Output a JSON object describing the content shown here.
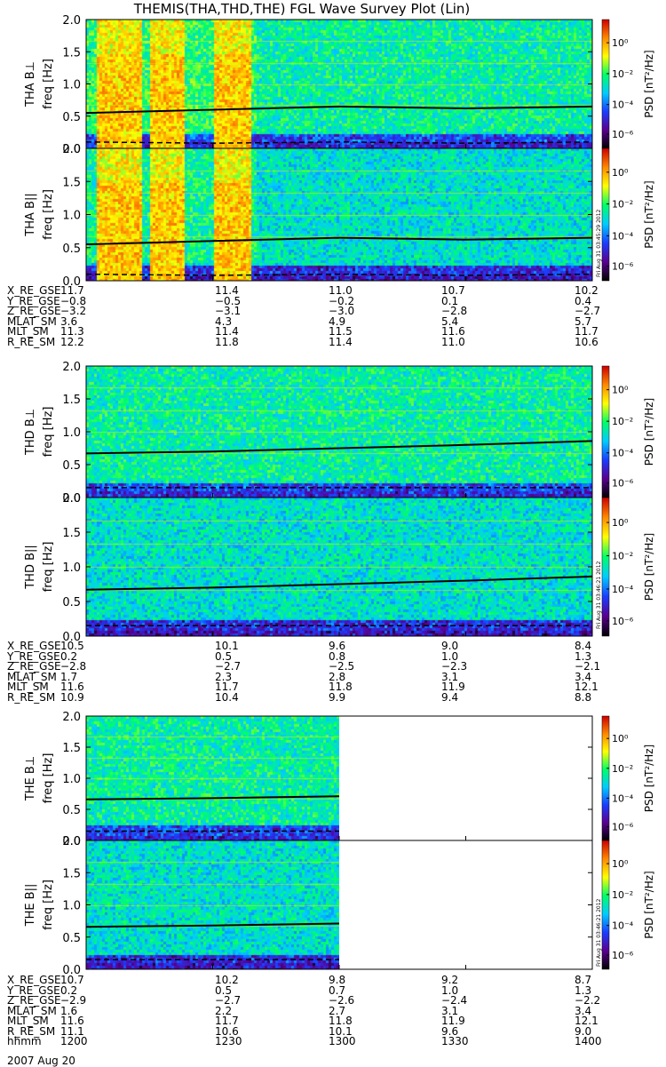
{
  "title": "THEMIS(THA,THD,THE) FGL Wave Survey Plot (Lin)",
  "date_label": "2007 Aug 20",
  "colorbar_label": "PSD [nT²/Hz]",
  "colorbar_ticks": [
    "10⁰",
    "10⁻²",
    "10⁻⁴",
    "10⁻⁶"
  ],
  "panel_ylabels": [
    "THA B⊥",
    "THA B||",
    "THD B⊥",
    "THD B||",
    "THE B⊥",
    "THE B||"
  ],
  "freq_label": "freq [Hz]",
  "stamps": [
    "Fri Aug 31 03:45:29 2012",
    "Fri Aug 31 03:46:21 2012",
    "Fri Aug 31 03:46:21 2012"
  ],
  "ephemeris_blocks": [
    {
      "rows": [
        {
          "label": "X_RE_GSE",
          "values": [
            "11.7",
            "11.4",
            "11.0",
            "10.7",
            "10.2"
          ]
        },
        {
          "label": "Y_RE_GSE",
          "values": [
            "−0.8",
            "−0.5",
            "−0.2",
            "0.1",
            "0.4"
          ]
        },
        {
          "label": "Z_RE_GSE",
          "values": [
            "−3.2",
            "−3.1",
            "−3.0",
            "−2.8",
            "−2.7"
          ]
        },
        {
          "label": "MLAT_SM",
          "values": [
            "3.6",
            "4.3",
            "4.9",
            "5.4",
            "5.7"
          ]
        },
        {
          "label": "MLT_SM",
          "values": [
            "11.3",
            "11.4",
            "11.5",
            "11.6",
            "11.7"
          ]
        },
        {
          "label": "R_RE_SM",
          "values": [
            "12.2",
            "11.8",
            "11.4",
            "11.0",
            "10.6"
          ]
        }
      ]
    },
    {
      "rows": [
        {
          "label": "X_RE_GSE",
          "values": [
            "10.5",
            "10.1",
            "9.6",
            "9.0",
            "8.4"
          ]
        },
        {
          "label": "Y_RE_GSE",
          "values": [
            "0.2",
            "0.5",
            "0.8",
            "1.0",
            "1.3"
          ]
        },
        {
          "label": "Z_RE_GSE",
          "values": [
            "−2.8",
            "−2.7",
            "−2.5",
            "−2.3",
            "−2.1"
          ]
        },
        {
          "label": "MLAT_SM",
          "values": [
            "1.7",
            "2.3",
            "2.8",
            "3.1",
            "3.4"
          ]
        },
        {
          "label": "MLT_SM",
          "values": [
            "11.6",
            "11.7",
            "11.8",
            "11.9",
            "12.1"
          ]
        },
        {
          "label": "R_RE_SM",
          "values": [
            "10.9",
            "10.4",
            "9.9",
            "9.4",
            "8.8"
          ]
        }
      ]
    },
    {
      "rows": [
        {
          "label": "X_RE_GSE",
          "values": [
            "10.7",
            "10.2",
            "9.8",
            "9.2",
            "8.7"
          ]
        },
        {
          "label": "Y_RE_GSE",
          "values": [
            "0.2",
            "0.5",
            "0.7",
            "1.0",
            "1.3"
          ]
        },
        {
          "label": "Z_RE_GSE",
          "values": [
            "−2.9",
            "−2.7",
            "−2.6",
            "−2.4",
            "−2.2"
          ]
        },
        {
          "label": "MLAT_SM",
          "values": [
            "1.6",
            "2.2",
            "2.7",
            "3.1",
            "3.4"
          ]
        },
        {
          "label": "MLT_SM",
          "values": [
            "11.6",
            "11.7",
            "11.8",
            "11.9",
            "12.1"
          ]
        },
        {
          "label": "R_RE_SM",
          "values": [
            "11.1",
            "10.6",
            "10.1",
            "9.6",
            "9.0"
          ]
        },
        {
          "label": "hhmm",
          "values": [
            "1200",
            "1230",
            "1300",
            "1330",
            "1400"
          ]
        }
      ]
    }
  ],
  "chart_data": {
    "type": "heatmap",
    "title": "THEMIS(THA,THD,THE) FGL Wave Survey Plot (Lin)",
    "ylabel": "freq [Hz]",
    "ylim": [
      0,
      2.0
    ],
    "yticks": [
      "0.0",
      "0.5",
      "1.0",
      "1.5",
      "2.0"
    ],
    "xlim_hhmm": [
      "1200",
      "1400"
    ],
    "xticks_hhmm": [
      "1200",
      "1230",
      "1300",
      "1330",
      "1400"
    ],
    "colorbar": {
      "label": "PSD [nT²/Hz]",
      "log_range": [
        -7,
        1
      ],
      "colors": [
        "#000000",
        "#5a0090",
        "#1a3dff",
        "#00ccff",
        "#00ff66",
        "#ffff00",
        "#ff8800",
        "#cc0000"
      ]
    },
    "panels": [
      {
        "name": "THA B⊥",
        "data_end_hhmm": "1400",
        "dashed_line": [
          0.1,
          0.08,
          0.1,
          0.08,
          0.1
        ],
        "solid_line": [
          0.55,
          0.6,
          0.65,
          0.62,
          0.65
        ]
      },
      {
        "name": "THA B||",
        "data_end_hhmm": "1400",
        "dashed_line": [
          0.1,
          0.08,
          0.1,
          0.08,
          0.1
        ],
        "solid_line": [
          0.55,
          0.6,
          0.65,
          0.62,
          0.65
        ]
      },
      {
        "name": "THD B⊥",
        "data_end_hhmm": "1400",
        "dashed_line": [
          0.15,
          0.15,
          0.15,
          0.15,
          0.15
        ],
        "solid_line": [
          0.67,
          0.7,
          0.75,
          0.8,
          0.86
        ]
      },
      {
        "name": "THD B||",
        "data_end_hhmm": "1400",
        "dashed_line": [
          0.15,
          0.15,
          0.15,
          0.15,
          0.15
        ],
        "solid_line": [
          0.67,
          0.7,
          0.75,
          0.8,
          0.86
        ]
      },
      {
        "name": "THE B⊥",
        "data_end_hhmm": "1300",
        "dashed_line": [
          0.15,
          0.15,
          0.15
        ],
        "solid_line": [
          0.66,
          0.68,
          0.71
        ]
      },
      {
        "name": "THE B||",
        "data_end_hhmm": "1300",
        "dashed_line": [
          0.15,
          0.15,
          0.15
        ],
        "solid_line": [
          0.66,
          0.68,
          0.71
        ]
      }
    ]
  }
}
